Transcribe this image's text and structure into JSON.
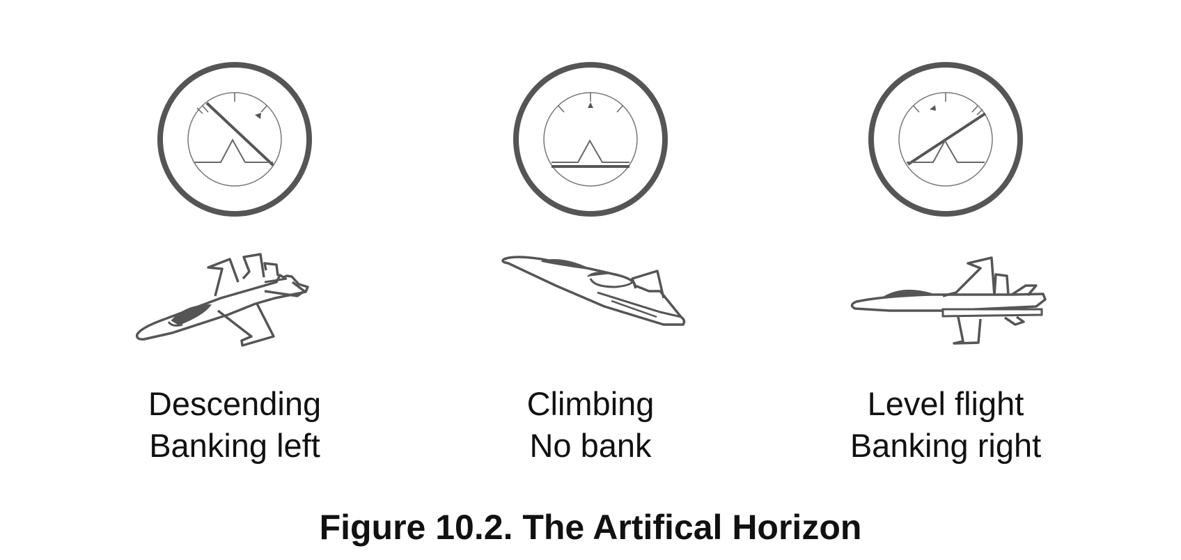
{
  "panels": [
    {
      "line1": "Descending",
      "line2": "Banking left"
    },
    {
      "line1": "Climbing",
      "line2": "No bank"
    },
    {
      "line1": "Level flight",
      "line2": "Banking right"
    }
  ],
  "figure_title": "Figure 10.2. The Artifical Horizon",
  "colors": {
    "stroke": "#555555",
    "fill": "#555555",
    "text": "#111111"
  },
  "icons": [
    "attitude-indicator-icon",
    "jet-aircraft-icon"
  ]
}
